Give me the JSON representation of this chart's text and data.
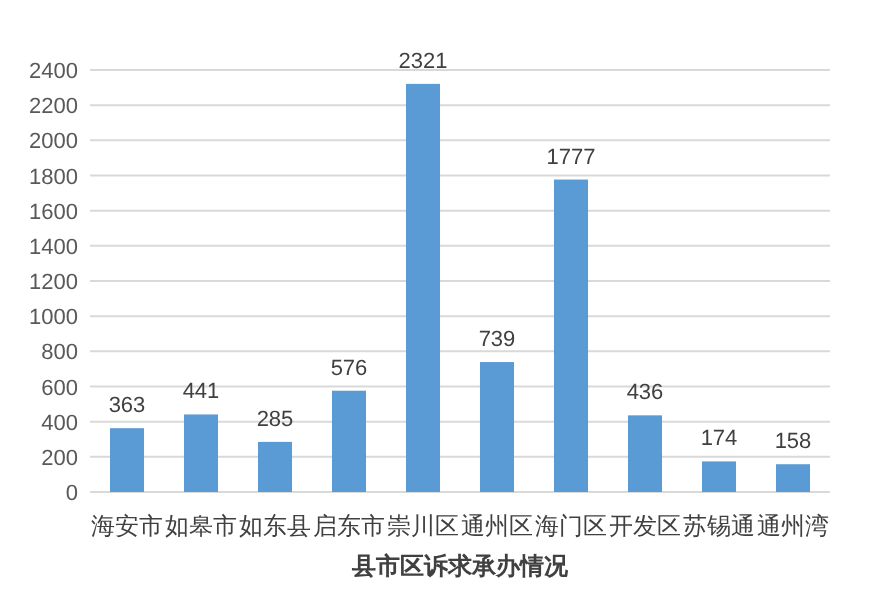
{
  "chart_data": {
    "type": "bar",
    "xlabel": "县市区诉求承办情况",
    "categories": [
      "海安市",
      "如皋市",
      "如东县",
      "启东市",
      "崇川区",
      "通州区",
      "海门区",
      "开发区",
      "苏锡通",
      "通州湾"
    ],
    "values": [
      363,
      441,
      285,
      576,
      2321,
      739,
      1777,
      436,
      174,
      158
    ],
    "color": "#5b9bd5",
    "ylim": [
      0,
      2400
    ],
    "yticks": [
      0,
      200,
      400,
      600,
      800,
      1000,
      1200,
      1400,
      1600,
      1800,
      2000,
      2200,
      2400
    ],
    "grid": "y",
    "data_labels": true
  }
}
